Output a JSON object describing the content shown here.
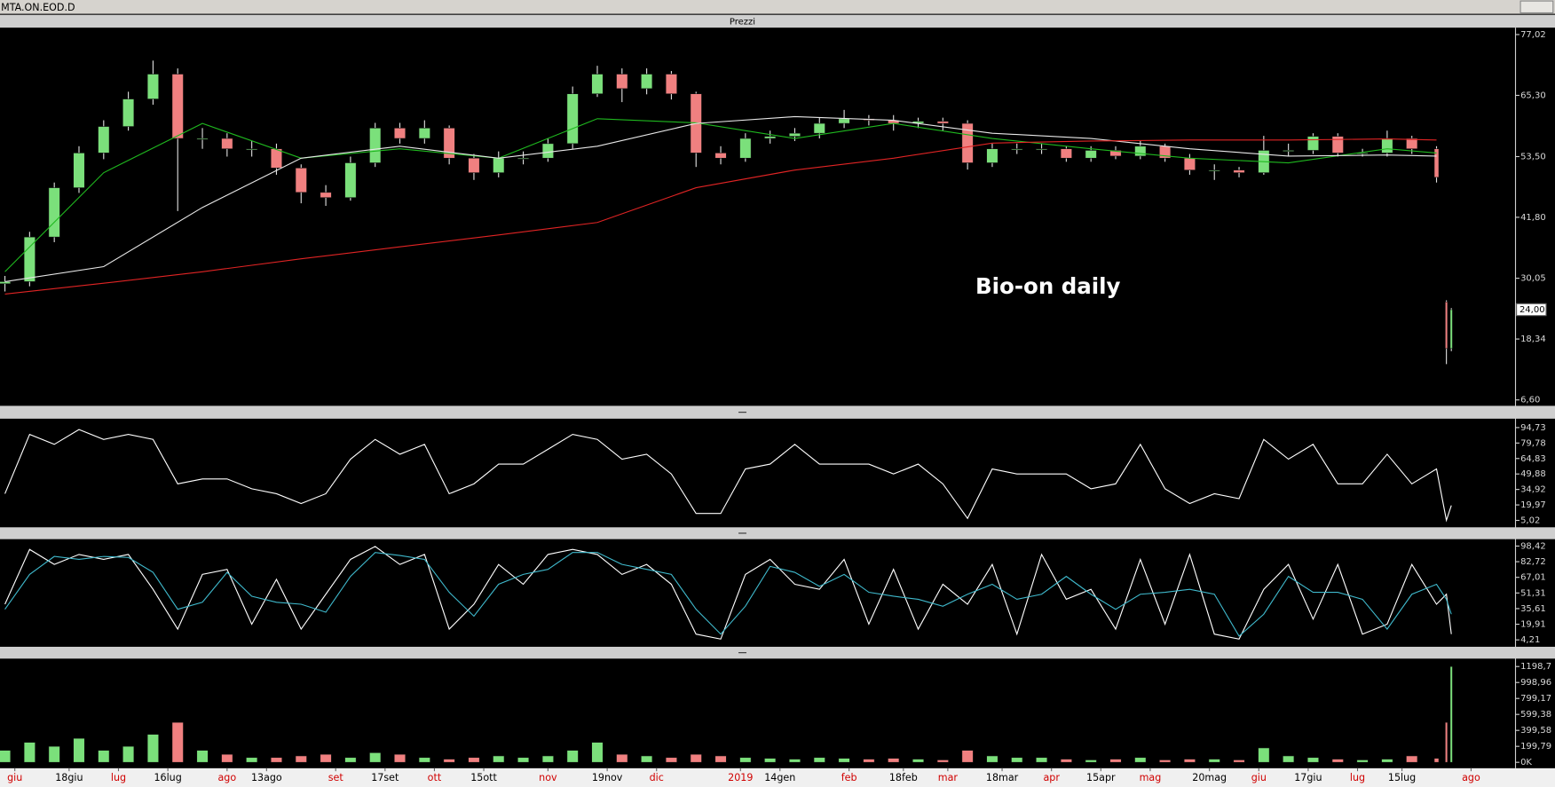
{
  "window_title": "MTA.ON.EOD.D",
  "chart_data": [
    {
      "type": "candlestick",
      "title": "Prezzi",
      "annotation": "Bio-on daily",
      "x": [
        0,
        5,
        10,
        15,
        20,
        25,
        30,
        35,
        40,
        45,
        50,
        55,
        60,
        65,
        70,
        75,
        80,
        85,
        90,
        95,
        100,
        105,
        110,
        115,
        120,
        125,
        130,
        135,
        140,
        145,
        150,
        155,
        160,
        165,
        170,
        175,
        180,
        185,
        190,
        195,
        200,
        205,
        210,
        215,
        220,
        225,
        230,
        235,
        240,
        245,
        250,
        255,
        260,
        265,
        270,
        275,
        280,
        285,
        290,
        292,
        293
      ],
      "open": [
        29,
        29.4,
        38,
        47.5,
        54.2,
        59.3,
        64.6,
        69.4,
        57,
        57,
        55,
        55,
        51.3,
        46.6,
        45.6,
        52.3,
        59,
        57,
        59,
        53.2,
        50.4,
        53.2,
        53.2,
        56,
        65.6,
        69.4,
        66.6,
        69.4,
        65.6,
        54.2,
        53.2,
        57,
        57.4,
        58,
        59.9,
        60.8,
        60.5,
        59.9,
        60.3,
        59.9,
        52.3,
        55,
        55,
        55,
        53.2,
        54.7,
        53.6,
        55.5,
        53.2,
        50.9,
        50.9,
        50.4,
        54.7,
        54.7,
        57.4,
        54.2,
        54.2,
        57,
        55,
        25.5,
        16.5
      ],
      "high": [
        30.5,
        39,
        48.5,
        55.5,
        60.5,
        66,
        72,
        70.5,
        59,
        58,
        56.5,
        56,
        52,
        48,
        53.5,
        60,
        60,
        60.5,
        59.5,
        54,
        54.5,
        54.5,
        57,
        67,
        71,
        70.5,
        70.5,
        70,
        66,
        55.5,
        58,
        58.5,
        59,
        61,
        62.5,
        61.5,
        61.5,
        61,
        61,
        60.5,
        56,
        56,
        56,
        55.5,
        55.5,
        55.5,
        56.5,
        56,
        54,
        52,
        51.5,
        57.5,
        56,
        58,
        58,
        55,
        58.5,
        57.5,
        55.5,
        25.8,
        24.3
      ],
      "low": [
        27.5,
        28.5,
        37,
        46.5,
        53,
        58.5,
        63.5,
        43,
        55,
        53.5,
        53.5,
        50,
        44.5,
        44,
        45,
        51.5,
        56,
        56,
        52,
        49,
        49.5,
        52,
        52.5,
        55,
        65,
        64,
        65.5,
        64.5,
        51.5,
        52,
        52.5,
        56,
        56.5,
        57,
        59,
        59.5,
        58.5,
        59,
        58.5,
        51,
        51.5,
        54,
        54,
        52.5,
        52.5,
        53,
        53,
        52.5,
        50,
        49,
        49.5,
        50,
        53.5,
        54,
        53.5,
        53.5,
        53.5,
        54,
        48.5,
        13.5,
        16
      ],
      "close": [
        29.4,
        38,
        47.5,
        54.2,
        59.3,
        64.6,
        69.4,
        57,
        57,
        55,
        55,
        51.3,
        46.6,
        45.6,
        52.3,
        59,
        57,
        59,
        53.2,
        50.4,
        53.2,
        53.2,
        56,
        65.6,
        69.4,
        66.6,
        69.4,
        65.6,
        54.2,
        53.2,
        57,
        57.4,
        58,
        59.9,
        60.8,
        60.5,
        59.9,
        60.3,
        59.9,
        52.3,
        55,
        55,
        55,
        53.2,
        54.7,
        53.6,
        55.5,
        53.2,
        50.9,
        50.9,
        50.4,
        54.7,
        54.7,
        57.4,
        54.2,
        54.2,
        57,
        55,
        49.5,
        16.5,
        24
      ],
      "up_color": "#7be07b",
      "down_color": "#f08080",
      "wick_color": "#e0e0e0",
      "overlay_x": [
        0,
        20,
        40,
        60,
        80,
        100,
        120,
        140,
        160,
        180,
        200,
        220,
        240,
        260,
        280,
        290
      ],
      "overlays": [
        {
          "color": "#1fb81f",
          "values": [
            31.3,
            50.4,
            59.9,
            53.2,
            55,
            53.2,
            60.8,
            60,
            57,
            59.9,
            57,
            55,
            53.2,
            52.3,
            55,
            54.2
          ]
        },
        {
          "color": "#e8e8e8",
          "values": [
            29.4,
            32.3,
            43.7,
            53.2,
            55.5,
            53.2,
            55.5,
            59.9,
            61.2,
            60.5,
            58,
            57,
            55,
            53.6,
            53.8,
            53.6
          ]
        },
        {
          "color": "#e02424",
          "values": [
            27,
            29.1,
            31.3,
            33.8,
            36.1,
            38.4,
            40.8,
            47.5,
            50.9,
            53.2,
            56.1,
            56.5,
            56.7,
            56.7,
            56.9,
            56.7
          ]
        }
      ],
      "last_price": {
        "value": 24,
        "label": "24,00"
      },
      "xlim": [
        0,
        306
      ],
      "ylim": [
        6.6,
        77.02
      ],
      "yticks": [
        {
          "value": 77.02,
          "label": "77,02"
        },
        {
          "value": 65.3,
          "label": "65,30"
        },
        {
          "value": 53.5,
          "label": "53,50"
        },
        {
          "value": 41.8,
          "label": "41,80"
        },
        {
          "value": 30.05,
          "label": "30,05"
        },
        {
          "value": 18.34,
          "label": "18,34"
        },
        {
          "value": 6.6,
          "label": "6,60"
        }
      ]
    },
    {
      "type": "line",
      "x": [
        0,
        5,
        10,
        15,
        20,
        25,
        30,
        35,
        40,
        45,
        50,
        55,
        60,
        65,
        70,
        75,
        80,
        85,
        90,
        95,
        100,
        105,
        110,
        115,
        120,
        125,
        130,
        135,
        140,
        145,
        150,
        155,
        160,
        165,
        170,
        175,
        180,
        185,
        190,
        195,
        200,
        205,
        210,
        215,
        220,
        225,
        230,
        235,
        240,
        245,
        250,
        255,
        260,
        265,
        270,
        275,
        280,
        285,
        290,
        292,
        293
      ],
      "series": [
        {
          "color": "#ffffff",
          "values": [
            30.8,
            88.1,
            78.5,
            92.8,
            83.3,
            88.1,
            83.3,
            40.3,
            45.1,
            45.1,
            35.6,
            30.8,
            21.3,
            30.8,
            64.2,
            83.3,
            69.0,
            78.5,
            30.8,
            40.3,
            59.4,
            59.4,
            73.7,
            88.1,
            83.3,
            64.2,
            69.0,
            49.9,
            11.7,
            11.7,
            54.7,
            59.4,
            78.5,
            59.4,
            59.4,
            59.4,
            49.9,
            59.4,
            40.3,
            6.9,
            54.7,
            49.9,
            49.9,
            49.9,
            35.6,
            40.3,
            78.5,
            35.6,
            21.3,
            30.8,
            26.0,
            83.3,
            64.2,
            78.5,
            40.3,
            40.3,
            69.0,
            40.3,
            54.7,
            5.1,
            19.4
          ]
        }
      ],
      "xlim": [
        0,
        306
      ],
      "ylim": [
        5.02,
        94.73
      ],
      "yticks": [
        {
          "value": 94.73,
          "label": "94,73"
        },
        {
          "value": 79.78,
          "label": "79,78"
        },
        {
          "value": 64.83,
          "label": "64,83"
        },
        {
          "value": 49.88,
          "label": "49,88"
        },
        {
          "value": 34.92,
          "label": "34,92"
        },
        {
          "value": 19.97,
          "label": "19,97"
        },
        {
          "value": 5.02,
          "label": "5,02"
        }
      ]
    },
    {
      "type": "line",
      "x": [
        0,
        5,
        10,
        15,
        20,
        25,
        30,
        35,
        40,
        45,
        50,
        55,
        60,
        65,
        70,
        75,
        80,
        85,
        90,
        95,
        100,
        105,
        110,
        115,
        120,
        125,
        130,
        135,
        140,
        145,
        150,
        155,
        160,
        165,
        170,
        175,
        180,
        185,
        190,
        195,
        200,
        205,
        210,
        215,
        220,
        225,
        230,
        235,
        240,
        245,
        250,
        255,
        260,
        265,
        270,
        275,
        280,
        285,
        290,
        292,
        293
      ],
      "series": [
        {
          "color": "#ffffff",
          "values": [
            40,
            95,
            80,
            90,
            85,
            90,
            55,
            15,
            70,
            75,
            20,
            65,
            15,
            50,
            85,
            98,
            80,
            90,
            15,
            40,
            80,
            60,
            90,
            95,
            90,
            70,
            80,
            60,
            10,
            5,
            70,
            85,
            60,
            55,
            85,
            20,
            75,
            15,
            60,
            40,
            80,
            10,
            90,
            45,
            55,
            15,
            85,
            20,
            90,
            10,
            5,
            55,
            80,
            25,
            80,
            10,
            20,
            80,
            40,
            50,
            10
          ]
        },
        {
          "color": "#3fb9cc",
          "values": [
            35,
            70,
            88,
            85,
            88,
            87,
            72,
            35,
            42,
            72,
            48,
            42,
            40,
            32,
            68,
            92,
            89,
            85,
            52,
            28,
            60,
            70,
            75,
            92,
            92,
            80,
            75,
            70,
            35,
            10,
            38,
            78,
            72,
            58,
            70,
            52,
            48,
            45,
            38,
            50,
            60,
            45,
            50,
            68,
            50,
            35,
            50,
            52,
            55,
            50,
            8,
            30,
            68,
            52,
            52,
            45,
            15,
            50,
            60,
            45,
            30
          ]
        }
      ],
      "xlim": [
        0,
        306
      ],
      "ylim": [
        4.21,
        98.42
      ],
      "yticks": [
        {
          "value": 98.42,
          "label": "98,42"
        },
        {
          "value": 82.72,
          "label": "82,72"
        },
        {
          "value": 67.01,
          "label": "67,01"
        },
        {
          "value": 51.31,
          "label": "51,31"
        },
        {
          "value": 35.61,
          "label": "35,61"
        },
        {
          "value": 19.91,
          "label": "19,91"
        },
        {
          "value": 4.21,
          "label": "4,21"
        }
      ]
    },
    {
      "type": "bar",
      "x": [
        0,
        5,
        10,
        15,
        20,
        25,
        30,
        35,
        40,
        45,
        50,
        55,
        60,
        65,
        70,
        75,
        80,
        85,
        90,
        95,
        100,
        105,
        110,
        115,
        120,
        125,
        130,
        135,
        140,
        145,
        150,
        155,
        160,
        165,
        170,
        175,
        180,
        185,
        190,
        195,
        200,
        205,
        210,
        215,
        220,
        225,
        230,
        235,
        240,
        245,
        250,
        255,
        260,
        265,
        270,
        275,
        280,
        285,
        290,
        292,
        293
      ],
      "values": [
        150,
        250,
        200,
        300,
        150,
        200,
        350,
        500,
        150,
        100,
        60,
        60,
        80,
        100,
        60,
        120,
        100,
        60,
        40,
        60,
        80,
        60,
        80,
        150,
        250,
        100,
        80,
        60,
        100,
        80,
        60,
        50,
        40,
        60,
        50,
        40,
        50,
        40,
        30,
        150,
        80,
        60,
        60,
        40,
        30,
        40,
        60,
        30,
        40,
        40,
        30,
        180,
        80,
        60,
        40,
        30,
        40,
        80,
        50,
        500,
        1198.7
      ],
      "up_color": "#7be07b",
      "down_color": "#f08080",
      "xlim": [
        0,
        306
      ],
      "ylim": [
        0,
        1198.7
      ],
      "yticks": [
        {
          "value": 1198.7,
          "label": "1198,7"
        },
        {
          "value": 998.96,
          "label": "998,96"
        },
        {
          "value": 799.17,
          "label": "799,17"
        },
        {
          "value": 599.38,
          "label": "599,38"
        },
        {
          "value": 399.58,
          "label": "399,58"
        },
        {
          "value": 199.79,
          "label": "199,79"
        },
        {
          "value": 0,
          "label": "0K"
        }
      ],
      "xticks": [
        {
          "value": 2,
          "label": "giu"
        },
        {
          "value": 13,
          "label": "18giu"
        },
        {
          "value": 23,
          "label": "lug"
        },
        {
          "value": 33,
          "label": "16lug"
        },
        {
          "value": 45,
          "label": "ago"
        },
        {
          "value": 53,
          "label": "13ago"
        },
        {
          "value": 67,
          "label": "set"
        },
        {
          "value": 77,
          "label": "17set"
        },
        {
          "value": 87,
          "label": "ott"
        },
        {
          "value": 97,
          "label": "15ott"
        },
        {
          "value": 110,
          "label": "nov"
        },
        {
          "value": 122,
          "label": "19nov"
        },
        {
          "value": 132,
          "label": "dic"
        },
        {
          "value": 149,
          "label": "2019"
        },
        {
          "value": 157,
          "label": "14gen"
        },
        {
          "value": 171,
          "label": "feb"
        },
        {
          "value": 182,
          "label": "18feb"
        },
        {
          "value": 191,
          "label": "mar"
        },
        {
          "value": 202,
          "label": "18mar"
        },
        {
          "value": 212,
          "label": "apr"
        },
        {
          "value": 222,
          "label": "15apr"
        },
        {
          "value": 232,
          "label": "mag"
        },
        {
          "value": 244,
          "label": "20mag"
        },
        {
          "value": 254,
          "label": "giu"
        },
        {
          "value": 264,
          "label": "17giu"
        },
        {
          "value": 274,
          "label": "lug"
        },
        {
          "value": 283,
          "label": "15lug"
        },
        {
          "value": 297,
          "label": "ago"
        }
      ]
    }
  ]
}
